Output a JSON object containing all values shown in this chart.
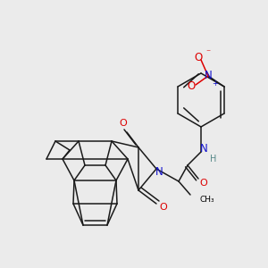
{
  "background_color": "#ebebeb",
  "bond_color": "#1a1a1a",
  "atom_colors": {
    "O": "#dd0000",
    "N": "#1111cc",
    "H": "#558888"
  },
  "lw": 1.1
}
